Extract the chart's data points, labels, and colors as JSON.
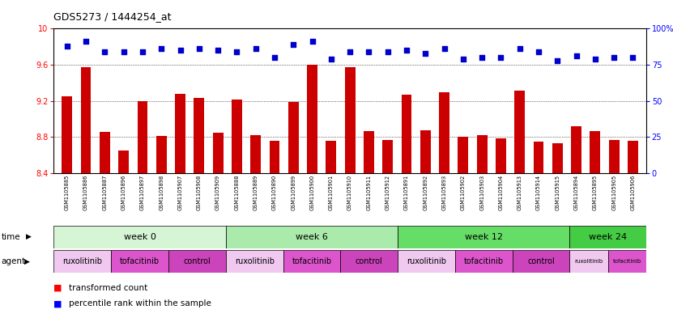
{
  "title": "GDS5273 / 1444254_at",
  "samples": [
    "GSM1105885",
    "GSM1105886",
    "GSM1105887",
    "GSM1105896",
    "GSM1105897",
    "GSM1105898",
    "GSM1105907",
    "GSM1105908",
    "GSM1105909",
    "GSM1105888",
    "GSM1105889",
    "GSM1105890",
    "GSM1105899",
    "GSM1105900",
    "GSM1105901",
    "GSM1105910",
    "GSM1105911",
    "GSM1105912",
    "GSM1105891",
    "GSM1105892",
    "GSM1105893",
    "GSM1105902",
    "GSM1105903",
    "GSM1105904",
    "GSM1105913",
    "GSM1105914",
    "GSM1105915",
    "GSM1105894",
    "GSM1105895",
    "GSM1105905",
    "GSM1105906"
  ],
  "bar_values": [
    9.25,
    9.57,
    8.86,
    8.65,
    9.2,
    8.81,
    9.28,
    9.23,
    8.85,
    9.22,
    8.82,
    8.76,
    9.19,
    9.6,
    8.76,
    9.57,
    8.87,
    8.77,
    9.27,
    8.88,
    9.3,
    8.8,
    8.82,
    8.79,
    9.31,
    8.75,
    8.73,
    8.92,
    8.87,
    8.77,
    8.76
  ],
  "percentile_values": [
    88,
    91,
    84,
    84,
    84,
    86,
    85,
    86,
    85,
    84,
    86,
    80,
    89,
    91,
    79,
    84,
    84,
    84,
    85,
    83,
    86,
    79,
    80,
    80,
    86,
    84,
    78,
    81,
    79,
    80,
    80
  ],
  "ylim_left": [
    8.4,
    10.0
  ],
  "ylim_right": [
    0,
    100
  ],
  "yticks_left": [
    8.4,
    8.8,
    9.2,
    9.6,
    10.0
  ],
  "ytick_labels_left": [
    "8.4",
    "8.8",
    "9.2",
    "9.6",
    "10"
  ],
  "yticks_right": [
    0,
    25,
    50,
    75,
    100
  ],
  "ytick_labels_right": [
    "0",
    "25",
    "50",
    "75",
    "100%"
  ],
  "bar_color": "#cc0000",
  "dot_color": "#0000cc",
  "hgrid_dotted": [
    8.8,
    9.2,
    9.6
  ],
  "week_groups": [
    {
      "label": "week 0",
      "start": 0,
      "end": 9,
      "color": "#d5f5d5"
    },
    {
      "label": "week 6",
      "start": 9,
      "end": 18,
      "color": "#aaeaaa"
    },
    {
      "label": "week 12",
      "start": 18,
      "end": 27,
      "color": "#66dd66"
    },
    {
      "label": "week 24",
      "start": 27,
      "end": 31,
      "color": "#44cc44"
    }
  ],
  "agent_groups": [
    {
      "label": "ruxolitinib",
      "start": 0,
      "end": 3,
      "color": "#f0c8f0"
    },
    {
      "label": "tofacitinib",
      "start": 3,
      "end": 6,
      "color": "#dd55cc"
    },
    {
      "label": "control",
      "start": 6,
      "end": 9,
      "color": "#cc44bb"
    },
    {
      "label": "ruxolitinib",
      "start": 9,
      "end": 12,
      "color": "#f0c8f0"
    },
    {
      "label": "tofacitinib",
      "start": 12,
      "end": 15,
      "color": "#dd55cc"
    },
    {
      "label": "control",
      "start": 15,
      "end": 18,
      "color": "#cc44bb"
    },
    {
      "label": "ruxolitinib",
      "start": 18,
      "end": 21,
      "color": "#f0c8f0"
    },
    {
      "label": "tofacitinib",
      "start": 21,
      "end": 24,
      "color": "#dd55cc"
    },
    {
      "label": "control",
      "start": 24,
      "end": 27,
      "color": "#cc44bb"
    },
    {
      "label": "ruxolitinib",
      "start": 27,
      "end": 29,
      "color": "#f0c8f0"
    },
    {
      "label": "tofacitinib",
      "start": 29,
      "end": 31,
      "color": "#dd55cc"
    }
  ],
  "xtick_bg_color": "#d8d8d8",
  "fig_width": 8.31,
  "fig_height": 3.93,
  "dpi": 100
}
